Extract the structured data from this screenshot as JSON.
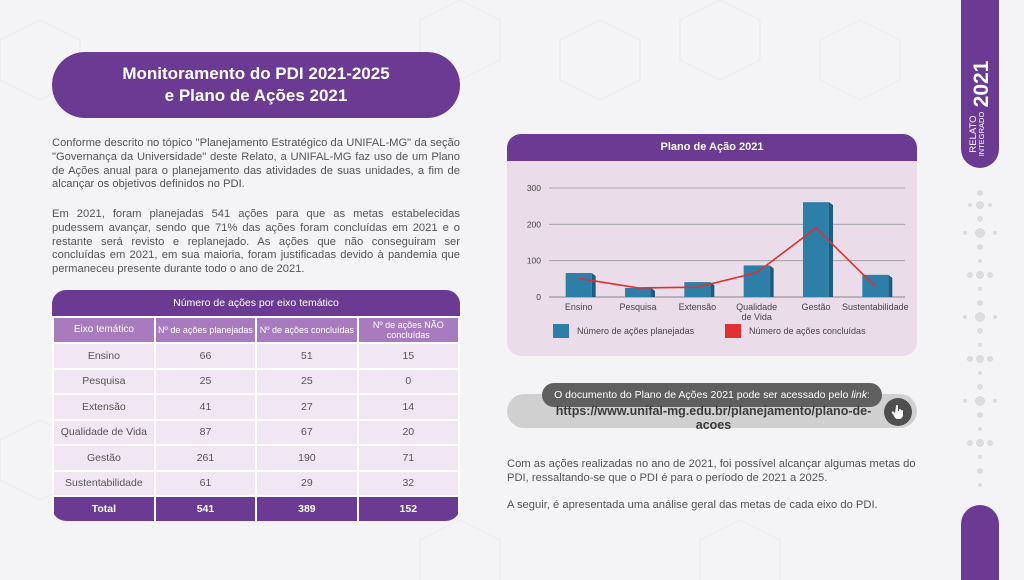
{
  "title": {
    "line1": "Monitoramento do PDI 2021-2025",
    "line2": "e Plano de Ações 2021"
  },
  "paragraphs": {
    "p1": "Conforme descrito no tópico \"Planejamento Estratégico da UNIFAL-MG\" da seção \"Governança da Universidade\" deste Relato, a UNIFAL-MG faz uso de um Plano de Ações anual para o planejamento das atividades de suas unidades, a fim de alcançar os objetivos definidos no PDI.",
    "p2": "Em 2021, foram planejadas 541 ações para que as metas estabelecidas pudessem avançar, sendo que 71% das ações foram concluídas em 2021 e o restante será revisto e replanejado. As ações que não conseguiram ser concluídas em 2021, em sua maioria, foram justificadas devido à pandemia que permaneceu presente durante todo o ano de 2021."
  },
  "table": {
    "caption": "Número de ações por eixo temático",
    "headers": [
      "Eixo temático",
      "Nº de ações planejadas",
      "Nº de ações concluídas",
      "Nº de ações NÃO concluídas"
    ],
    "rows": [
      [
        "Ensino",
        "66",
        "51",
        "15"
      ],
      [
        "Pesquisa",
        "25",
        "25",
        "0"
      ],
      [
        "Extensão",
        "41",
        "27",
        "14"
      ],
      [
        "Qualidade de Vida",
        "87",
        "67",
        "20"
      ],
      [
        "Gestão",
        "261",
        "190",
        "71"
      ],
      [
        "Sustentabilidade",
        "61",
        "29",
        "32"
      ]
    ],
    "total": [
      "Total",
      "541",
      "389",
      "152"
    ]
  },
  "chart_data": {
    "type": "bar",
    "title": "Plano de Ação 2021",
    "categories": [
      "Ensino",
      "Pesquisa",
      "Extensão",
      "Qualidade de Vida",
      "Gestão",
      "Sustentabilidade"
    ],
    "series": [
      {
        "name": "Número de ações planejadas",
        "kind": "bar",
        "color": "#2e7fa8",
        "values": [
          66,
          25,
          41,
          87,
          261,
          61
        ]
      },
      {
        "name": "Número de ações concluídas",
        "kind": "line",
        "color": "#e03030",
        "values": [
          51,
          25,
          27,
          67,
          190,
          29
        ]
      }
    ],
    "yticks": [
      0,
      100,
      200,
      300
    ],
    "ylim": [
      0,
      300
    ],
    "legend": "bottom"
  },
  "link": {
    "intro": "O documento do Plano de Ações 2021 pode ser acessado pelo ",
    "intro_em": "link",
    "intro_end": ":",
    "url": "https://www.unifal-mg.edu.br/planejamento/plano-de-acoes"
  },
  "right_paragraphs": {
    "p1": "Com as ações realizadas no ano de 2021, foi possível alcançar algumas metas do PDI, ressaltando-se que o PDI é para o período de 2021 a 2025.",
    "p2": "A seguir, é apresentada uma análise geral das metas de cada eixo do PDI."
  },
  "sidebar": {
    "relato": "RELATO",
    "integrado": "INTEGRADO",
    "year": "2021"
  },
  "colors": {
    "purple": "#6b3a93",
    "light_purple": "#a77bbd",
    "bar": "#2e7fa8",
    "line": "#e03030"
  }
}
